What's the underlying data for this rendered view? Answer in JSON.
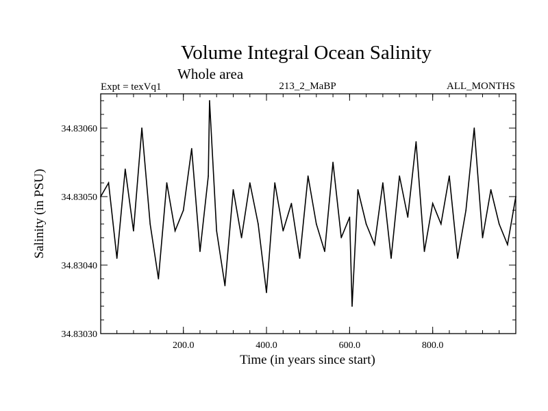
{
  "chart_data": {
    "type": "line",
    "title": "Volume Integral Ocean Salinity",
    "subtitle": "Whole area",
    "info_left": "Expt = texVq1",
    "info_center": "213_2_MaBP",
    "info_right": "ALL_MONTHS",
    "xlabel": "Time (in years since start)",
    "ylabel": "Salinity (in PSU)",
    "xlim": [
      1,
      1000
    ],
    "ylim": [
      34.8303,
      34.83065
    ],
    "xticks": [
      200.0,
      400.0,
      600.0,
      800.0
    ],
    "xtick_labels": [
      "200.0",
      "400.0",
      "600.0",
      "800.0"
    ],
    "yticks": [
      34.8303,
      34.8304,
      34.8305,
      34.8306
    ],
    "ytick_labels": [
      "34.83030",
      "34.83040",
      "34.83050",
      "34.83060"
    ],
    "series": [
      {
        "name": "Salinity",
        "x": [
          1,
          20,
          40,
          60,
          80,
          100,
          120,
          140,
          160,
          180,
          200,
          220,
          240,
          260,
          263,
          280,
          300,
          320,
          340,
          360,
          380,
          400,
          420,
          440,
          460,
          480,
          500,
          520,
          540,
          560,
          580,
          600,
          606,
          620,
          640,
          660,
          680,
          700,
          720,
          740,
          760,
          780,
          800,
          820,
          840,
          860,
          880,
          900,
          920,
          940,
          960,
          980,
          1000
        ],
        "values": [
          34.8305,
          34.83052,
          34.83041,
          34.83054,
          34.83045,
          34.8306,
          34.83046,
          34.83038,
          34.83052,
          34.83045,
          34.83048,
          34.83057,
          34.83042,
          34.83053,
          34.83064,
          34.83045,
          34.83037,
          34.83051,
          34.83044,
          34.83052,
          34.83046,
          34.83036,
          34.83052,
          34.83045,
          34.83049,
          34.83041,
          34.83053,
          34.83046,
          34.83042,
          34.83055,
          34.83044,
          34.83047,
          34.83034,
          34.83051,
          34.83046,
          34.83043,
          34.83052,
          34.83041,
          34.83053,
          34.83047,
          34.83058,
          34.83042,
          34.83049,
          34.83046,
          34.83053,
          34.83041,
          34.83048,
          34.8306,
          34.83044,
          34.83051,
          34.83046,
          34.83043,
          34.8305
        ],
        "line_color": "#000000"
      }
    ]
  }
}
